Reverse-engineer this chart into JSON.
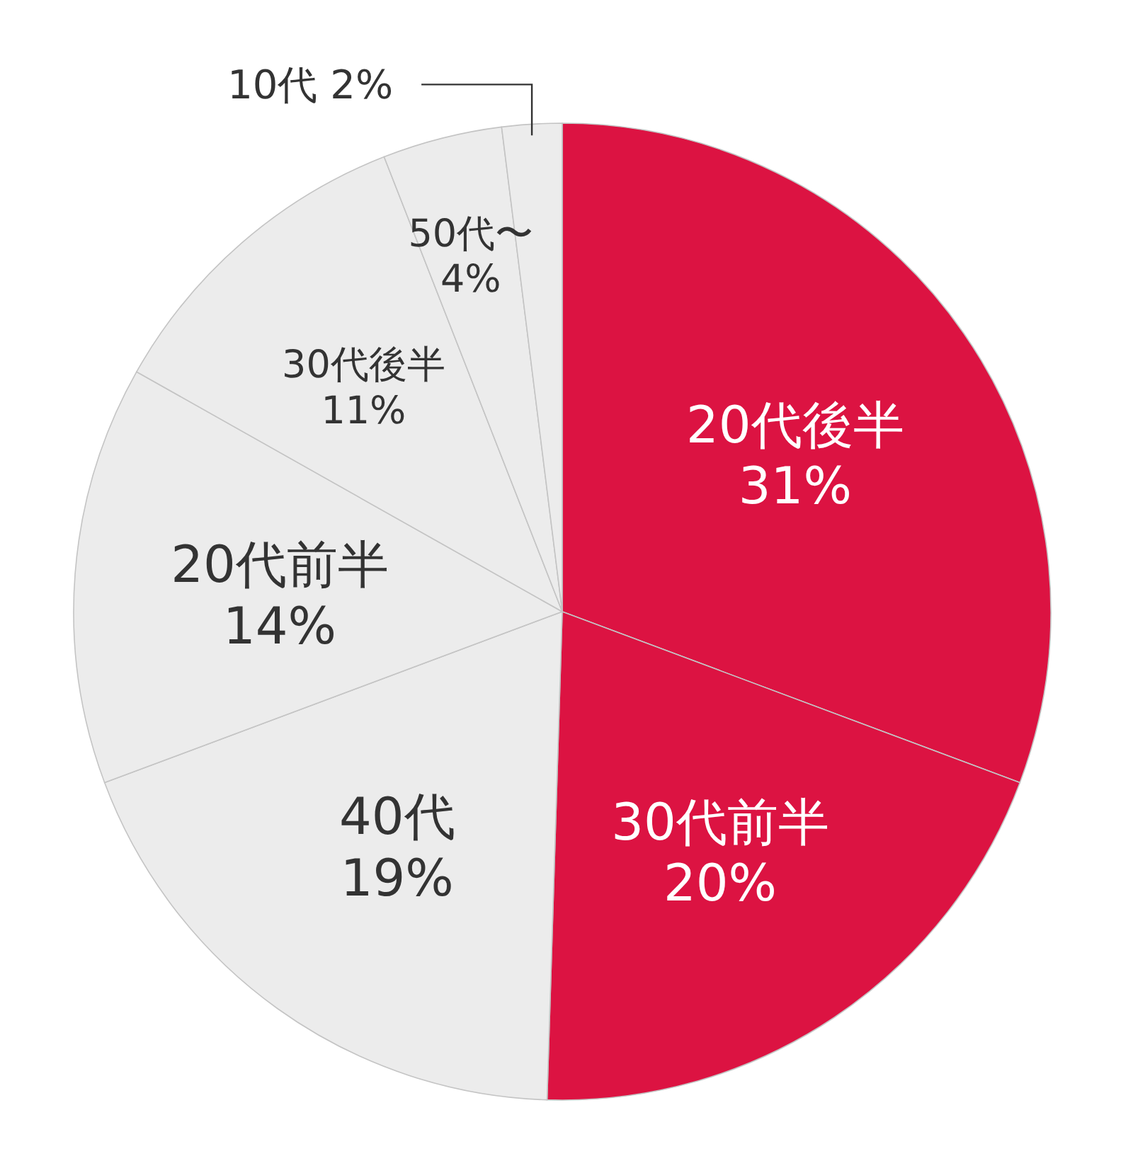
{
  "chart_data": {
    "type": "pie",
    "categories": [
      "20代後半",
      "30代前半",
      "40代",
      "20代前半",
      "30代後半",
      "50代〜",
      "10代"
    ],
    "values": [
      31,
      20,
      19,
      14,
      11,
      4,
      2
    ],
    "value_labels": [
      "31%",
      "20%",
      "19%",
      "14%",
      "11%",
      "4%",
      "2%"
    ],
    "colors": [
      "#dc1342",
      "#dc1342",
      "#ececec",
      "#ececec",
      "#ececec",
      "#ececec",
      "#ececec"
    ]
  }
}
